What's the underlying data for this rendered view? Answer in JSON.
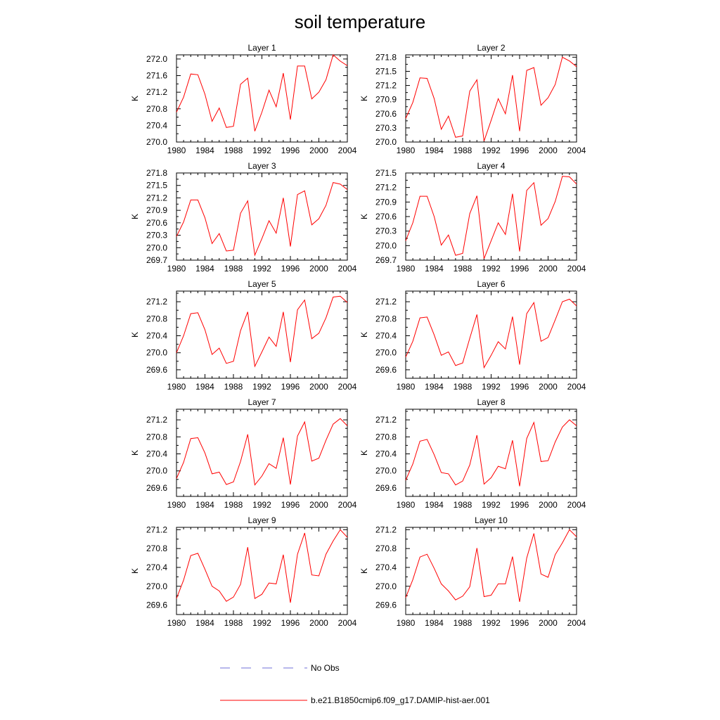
{
  "figure": {
    "title": "soil temperature"
  },
  "chart_data": [
    {
      "type": "line",
      "title": "Layer 1",
      "ylabel": "K",
      "xlabel": "",
      "xlim": [
        1980,
        2004
      ],
      "ylim": [
        270.0,
        272.1
      ],
      "xticks": [
        1980,
        1984,
        1988,
        1992,
        1996,
        2000,
        2004
      ],
      "yticks": [
        270.0,
        270.4,
        270.8,
        271.2,
        271.6,
        272.0
      ],
      "ytick_labels": [
        "270.0",
        "270.4",
        "270.8",
        "271.2",
        "271.6",
        "272.0"
      ],
      "x": [
        1980,
        1981,
        1982,
        1983,
        1984,
        1985,
        1986,
        1987,
        1988,
        1989,
        1990,
        1991,
        1992,
        1993,
        1994,
        1995,
        1996,
        1997,
        1998,
        1999,
        2000,
        2001,
        2002,
        2003,
        2004
      ],
      "series": [
        {
          "name": "b.e21.B1850cmip6.f09_g17.DAMIP-hist-aer.001",
          "color": "#ff0000",
          "values": [
            270.72,
            271.08,
            271.64,
            271.62,
            271.15,
            270.5,
            270.82,
            270.35,
            270.38,
            271.39,
            271.54,
            270.26,
            270.72,
            271.25,
            270.85,
            271.66,
            270.54,
            271.83,
            271.83,
            271.04,
            271.2,
            271.5,
            272.1,
            271.95,
            271.84
          ]
        }
      ]
    },
    {
      "type": "line",
      "title": "Layer 2",
      "ylabel": "K",
      "xlabel": "",
      "xlim": [
        1980,
        2004
      ],
      "ylim": [
        270.0,
        271.85
      ],
      "xticks": [
        1980,
        1984,
        1988,
        1992,
        1996,
        2000,
        2004
      ],
      "yticks": [
        270.0,
        270.3,
        270.6,
        270.9,
        271.2,
        271.5,
        271.8
      ],
      "ytick_labels": [
        "270.0",
        "270.3",
        "270.6",
        "270.9",
        "271.2",
        "271.5",
        "271.8"
      ],
      "x": [
        1980,
        1981,
        1982,
        1983,
        1984,
        1985,
        1986,
        1987,
        1988,
        1989,
        1990,
        1991,
        1992,
        1993,
        1994,
        1995,
        1996,
        1997,
        1998,
        1999,
        2000,
        2001,
        2002,
        2003,
        2004
      ],
      "series": [
        {
          "name": "b.e21.B1850cmip6.f09_g17.DAMIP-hist-aer.001",
          "color": "#ff0000",
          "values": [
            270.5,
            270.84,
            271.36,
            271.35,
            270.92,
            270.27,
            270.55,
            270.1,
            270.13,
            271.08,
            271.32,
            270.02,
            270.46,
            270.92,
            270.6,
            271.42,
            270.23,
            271.52,
            271.58,
            270.78,
            270.94,
            271.22,
            271.8,
            271.72,
            271.6
          ]
        }
      ]
    },
    {
      "type": "line",
      "title": "Layer 3",
      "ylabel": "K",
      "xlabel": "",
      "xlim": [
        1980,
        2004
      ],
      "ylim": [
        269.7,
        271.8
      ],
      "xticks": [
        1980,
        1984,
        1988,
        1992,
        1996,
        2000,
        2004
      ],
      "yticks": [
        269.7,
        270.0,
        270.3,
        270.6,
        270.9,
        271.2,
        271.5,
        271.8
      ],
      "ytick_labels": [
        "269.7",
        "270.0",
        "270.3",
        "270.6",
        "270.9",
        "271.2",
        "271.5",
        "271.8"
      ],
      "x": [
        1980,
        1981,
        1982,
        1983,
        1984,
        1985,
        1986,
        1987,
        1988,
        1989,
        1990,
        1991,
        1992,
        1993,
        1994,
        1995,
        1996,
        1997,
        1998,
        1999,
        2000,
        2001,
        2002,
        2003,
        2004
      ],
      "series": [
        {
          "name": "b.e21.B1850cmip6.f09_g17.DAMIP-hist-aer.001",
          "color": "#ff0000",
          "values": [
            270.27,
            270.62,
            271.15,
            271.15,
            270.72,
            270.1,
            270.34,
            269.92,
            269.94,
            270.83,
            271.13,
            269.82,
            270.22,
            270.65,
            270.35,
            271.2,
            270.03,
            271.28,
            271.37,
            270.55,
            270.7,
            271.02,
            271.57,
            271.53,
            271.4
          ]
        }
      ]
    },
    {
      "type": "line",
      "title": "Layer 4",
      "ylabel": "K",
      "xlabel": "",
      "xlim": [
        1980,
        2004
      ],
      "ylim": [
        269.7,
        271.5
      ],
      "xticks": [
        1980,
        1984,
        1988,
        1992,
        1996,
        2000,
        2004
      ],
      "yticks": [
        269.7,
        270.0,
        270.3,
        270.6,
        270.9,
        271.2,
        271.5
      ],
      "ytick_labels": [
        "269.7",
        "270.0",
        "270.3",
        "270.6",
        "270.9",
        "271.2",
        "271.5"
      ],
      "x": [
        1980,
        1981,
        1982,
        1983,
        1984,
        1985,
        1986,
        1987,
        1988,
        1989,
        1990,
        1991,
        1992,
        1993,
        1994,
        1995,
        1996,
        1997,
        1998,
        1999,
        2000,
        2001,
        2002,
        2003,
        2004
      ],
      "series": [
        {
          "name": "b.e21.B1850cmip6.f09_g17.DAMIP-hist-aer.001",
          "color": "#ff0000",
          "values": [
            270.1,
            270.47,
            271.02,
            271.02,
            270.6,
            270.01,
            270.22,
            269.8,
            269.84,
            270.66,
            271.03,
            269.73,
            270.1,
            270.47,
            270.23,
            271.07,
            269.88,
            271.14,
            271.3,
            270.42,
            270.56,
            270.91,
            271.43,
            271.42,
            271.27
          ]
        }
      ]
    },
    {
      "type": "line",
      "title": "Layer 5",
      "ylabel": "K",
      "xlabel": "",
      "xlim": [
        1980,
        2004
      ],
      "ylim": [
        269.4,
        271.45
      ],
      "xticks": [
        1980,
        1984,
        1988,
        1992,
        1996,
        2000,
        2004
      ],
      "yticks": [
        269.6,
        270.0,
        270.4,
        270.8,
        271.2
      ],
      "ytick_labels": [
        "269.6",
        "270.0",
        "270.4",
        "270.8",
        "271.2"
      ],
      "x": [
        1980,
        1981,
        1982,
        1983,
        1984,
        1985,
        1986,
        1987,
        1988,
        1989,
        1990,
        1991,
        1992,
        1993,
        1994,
        1995,
        1996,
        1997,
        1998,
        1999,
        2000,
        2001,
        2002,
        2003,
        2004
      ],
      "series": [
        {
          "name": "b.e21.B1850cmip6.f09_g17.DAMIP-hist-aer.001",
          "color": "#ff0000",
          "values": [
            270.0,
            270.4,
            270.92,
            270.94,
            270.54,
            269.96,
            270.11,
            269.75,
            269.8,
            270.52,
            270.96,
            269.68,
            270.02,
            270.37,
            270.15,
            270.96,
            269.78,
            271.01,
            271.24,
            270.33,
            270.46,
            270.82,
            271.31,
            271.33,
            271.18
          ]
        }
      ]
    },
    {
      "type": "line",
      "title": "Layer 6",
      "ylabel": "K",
      "xlabel": "",
      "xlim": [
        1980,
        2004
      ],
      "ylim": [
        269.4,
        271.45
      ],
      "xticks": [
        1980,
        1984,
        1988,
        1992,
        1996,
        2000,
        2004
      ],
      "yticks": [
        269.6,
        270.0,
        270.4,
        270.8,
        271.2
      ],
      "ytick_labels": [
        "269.6",
        "270.0",
        "270.4",
        "270.8",
        "271.2"
      ],
      "x": [
        1980,
        1981,
        1982,
        1983,
        1984,
        1985,
        1986,
        1987,
        1988,
        1989,
        1990,
        1991,
        1992,
        1993,
        1994,
        1995,
        1996,
        1997,
        1998,
        1999,
        2000,
        2001,
        2002,
        2003,
        2004
      ],
      "series": [
        {
          "name": "b.e21.B1850cmip6.f09_g17.DAMIP-hist-aer.001",
          "color": "#ff0000",
          "values": [
            269.9,
            270.27,
            270.82,
            270.84,
            270.42,
            269.94,
            270.02,
            269.7,
            269.76,
            270.34,
            270.9,
            269.65,
            269.94,
            270.26,
            270.09,
            270.85,
            269.72,
            270.92,
            271.18,
            270.27,
            270.36,
            270.77,
            271.2,
            271.26,
            271.1
          ]
        }
      ]
    },
    {
      "type": "line",
      "title": "Layer 7",
      "ylabel": "K",
      "xlabel": "",
      "xlim": [
        1980,
        2004
      ],
      "ylim": [
        269.4,
        271.45
      ],
      "xticks": [
        1980,
        1984,
        1988,
        1992,
        1996,
        2000,
        2004
      ],
      "yticks": [
        269.6,
        270.0,
        270.4,
        270.8,
        271.2
      ],
      "ytick_labels": [
        "269.6",
        "270.0",
        "270.4",
        "270.8",
        "271.2"
      ],
      "x": [
        1980,
        1981,
        1982,
        1983,
        1984,
        1985,
        1986,
        1987,
        1988,
        1989,
        1990,
        1991,
        1992,
        1993,
        1994,
        1995,
        1996,
        1997,
        1998,
        1999,
        2000,
        2001,
        2002,
        2003,
        2004
      ],
      "series": [
        {
          "name": "b.e21.B1850cmip6.f09_g17.DAMIP-hist-aer.001",
          "color": "#ff0000",
          "values": [
            269.82,
            270.2,
            270.76,
            270.78,
            270.42,
            269.93,
            269.97,
            269.68,
            269.74,
            270.22,
            270.86,
            269.67,
            269.88,
            270.17,
            270.06,
            270.78,
            269.68,
            270.82,
            271.15,
            270.23,
            270.3,
            270.72,
            271.1,
            271.23,
            271.06
          ]
        }
      ]
    },
    {
      "type": "line",
      "title": "Layer 8",
      "ylabel": "K",
      "xlabel": "",
      "xlim": [
        1980,
        2004
      ],
      "ylim": [
        269.4,
        271.45
      ],
      "xticks": [
        1980,
        1984,
        1988,
        1992,
        1996,
        2000,
        2004
      ],
      "yticks": [
        269.6,
        270.0,
        270.4,
        270.8,
        271.2
      ],
      "ytick_labels": [
        "269.6",
        "270.0",
        "270.4",
        "270.8",
        "271.2"
      ],
      "x": [
        1980,
        1981,
        1982,
        1983,
        1984,
        1985,
        1986,
        1987,
        1988,
        1989,
        1990,
        1991,
        1992,
        1993,
        1994,
        1995,
        1996,
        1997,
        1998,
        1999,
        2000,
        2001,
        2002,
        2003,
        2004
      ],
      "series": [
        {
          "name": "b.e21.B1850cmip6.f09_g17.DAMIP-hist-aer.001",
          "color": "#ff0000",
          "values": [
            269.78,
            270.16,
            270.7,
            270.74,
            270.38,
            269.96,
            269.93,
            269.67,
            269.76,
            270.14,
            270.84,
            269.69,
            269.84,
            270.11,
            270.05,
            270.72,
            269.64,
            270.76,
            271.14,
            270.22,
            270.24,
            270.68,
            271.03,
            271.2,
            271.06
          ]
        }
      ]
    },
    {
      "type": "line",
      "title": "Layer 9",
      "ylabel": "K",
      "xlabel": "",
      "xlim": [
        1980,
        2004
      ],
      "ylim": [
        269.4,
        271.25
      ],
      "xticks": [
        1980,
        1984,
        1988,
        1992,
        1996,
        2000,
        2004
      ],
      "yticks": [
        269.6,
        270.0,
        270.4,
        270.8,
        271.2
      ],
      "ytick_labels": [
        "269.6",
        "270.0",
        "270.4",
        "270.8",
        "271.2"
      ],
      "x": [
        1980,
        1981,
        1982,
        1983,
        1984,
        1985,
        1986,
        1987,
        1988,
        1989,
        1990,
        1991,
        1992,
        1993,
        1994,
        1995,
        1996,
        1997,
        1998,
        1999,
        2000,
        2001,
        2002,
        2003,
        2004
      ],
      "series": [
        {
          "name": "b.e21.B1850cmip6.f09_g17.DAMIP-hist-aer.001",
          "color": "#ff0000",
          "values": [
            269.74,
            270.13,
            270.65,
            270.7,
            270.36,
            270.0,
            269.9,
            269.68,
            269.77,
            270.04,
            270.83,
            269.74,
            269.83,
            270.07,
            270.05,
            270.67,
            269.65,
            270.68,
            271.13,
            270.24,
            270.22,
            270.68,
            270.96,
            271.2,
            271.04
          ]
        }
      ]
    },
    {
      "type": "line",
      "title": "Layer 10",
      "ylabel": "K",
      "xlabel": "",
      "xlim": [
        1980,
        2004
      ],
      "ylim": [
        269.4,
        271.25
      ],
      "xticks": [
        1980,
        1984,
        1988,
        1992,
        1996,
        2000,
        2004
      ],
      "yticks": [
        269.6,
        270.0,
        270.4,
        270.8,
        271.2
      ],
      "ytick_labels": [
        "269.6",
        "270.0",
        "270.4",
        "270.8",
        "271.2"
      ],
      "x": [
        1980,
        1981,
        1982,
        1983,
        1984,
        1985,
        1986,
        1987,
        1988,
        1989,
        1990,
        1991,
        1992,
        1993,
        1994,
        1995,
        1996,
        1997,
        1998,
        1999,
        2000,
        2001,
        2002,
        2003,
        2004
      ],
      "series": [
        {
          "name": "b.e21.B1850cmip6.f09_g17.DAMIP-hist-aer.001",
          "color": "#ff0000",
          "values": [
            269.76,
            270.14,
            270.62,
            270.68,
            270.38,
            270.05,
            269.9,
            269.71,
            269.79,
            269.99,
            270.81,
            269.78,
            269.81,
            270.05,
            270.05,
            270.63,
            269.67,
            270.6,
            271.12,
            270.26,
            270.19,
            270.67,
            270.92,
            271.2,
            271.05
          ]
        }
      ]
    }
  ],
  "legend": {
    "items": [
      {
        "label": "No Obs",
        "color": "#6f6fd8",
        "style": "dashed"
      },
      {
        "label": "b.e21.B1850cmip6.f09_g17.DAMIP-hist-aer.001",
        "color": "#ff0000",
        "style": "solid"
      }
    ]
  }
}
